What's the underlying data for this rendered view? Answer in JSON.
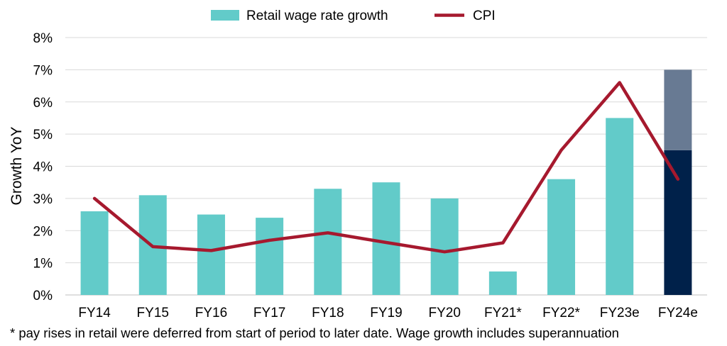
{
  "chart_data": {
    "type": "bar",
    "title": "",
    "ylabel": "Growth YoY",
    "xlabel": "",
    "ylim": [
      0,
      8
    ],
    "y_ticks": [
      "0%",
      "1%",
      "2%",
      "3%",
      "4%",
      "5%",
      "6%",
      "7%",
      "8%"
    ],
    "y_tick_values": [
      0,
      1,
      2,
      3,
      4,
      5,
      6,
      7,
      8
    ],
    "grid": true,
    "legend_position": "top",
    "categories": [
      "FY14",
      "FY15",
      "FY16",
      "FY17",
      "FY18",
      "FY19",
      "FY20",
      "FY21*",
      "FY22*",
      "FY23e",
      "FY24e"
    ],
    "series": [
      {
        "name": "Retail wage rate growth",
        "kind": "bar",
        "color": "#62CBC9",
        "values": [
          2.6,
          3.1,
          2.5,
          2.4,
          3.3,
          3.5,
          3.0,
          0.73,
          3.6,
          5.5,
          null
        ]
      },
      {
        "name": "CPI",
        "kind": "line",
        "color": "#A6192E",
        "values": [
          3.0,
          1.5,
          1.38,
          1.7,
          1.93,
          1.63,
          1.34,
          1.62,
          4.5,
          6.6,
          3.6
        ]
      }
    ],
    "fy24e_range_bar": {
      "category": "FY24e",
      "low": 4.5,
      "high": 7.0,
      "lower_color": "#00214A",
      "upper_color": "#687A93"
    }
  },
  "footnote": "* pay rises in retail were deferred from start of period to later date. Wage growth includes superannuation"
}
